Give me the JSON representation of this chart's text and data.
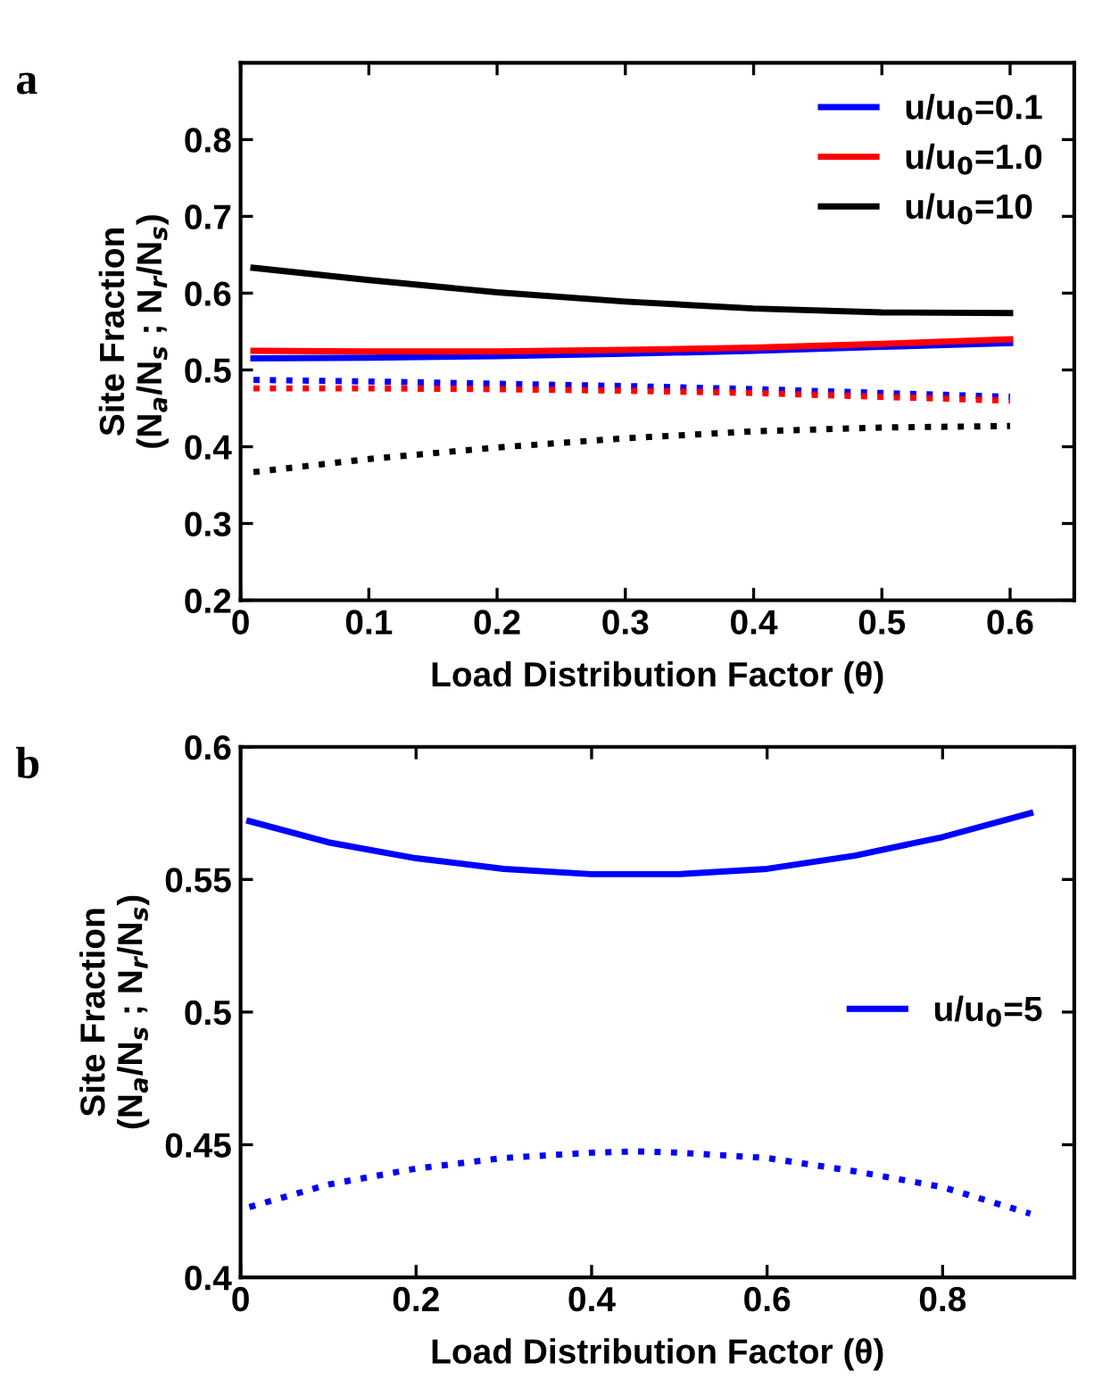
{
  "chart_data": [
    {
      "type": "line",
      "title": "a",
      "xlabel": "Load Distribution Factor (θ)",
      "ylabel": "Site Fraction\n(N$_{a}$/N$_{s}$ ; N$_{r}$/N$_{s}$)",
      "x": [
        0.01,
        0.1,
        0.2,
        0.3,
        0.4,
        0.5,
        0.6
      ],
      "xlim": [
        0,
        0.65
      ],
      "ylim": [
        0.2,
        0.9
      ],
      "xticks": [
        0,
        0.1,
        0.2,
        0.3,
        0.4,
        0.5,
        0.6
      ],
      "yticks": [
        0.2,
        0.3,
        0.4,
        0.5,
        0.6,
        0.7,
        0.8
      ],
      "legend": "top right",
      "grid": false,
      "series": [
        {
          "name": "u/u$_{0}$=0.1",
          "color": "#0000ff",
          "line_style": "solid",
          "values": [
            0.515,
            0.516,
            0.518,
            0.521,
            0.525,
            0.53,
            0.535
          ]
        },
        {
          "name": "u/u$_{0}$=1.0",
          "color": "#ff0000",
          "line_style": "solid",
          "values": [
            0.525,
            0.524,
            0.524,
            0.526,
            0.529,
            0.534,
            0.54
          ]
        },
        {
          "name": "u/u$_{0}$=10",
          "color": "#000000",
          "line_style": "solid",
          "values": [
            0.633,
            0.617,
            0.601,
            0.589,
            0.58,
            0.575,
            0.574
          ]
        },
        {
          "color": "#0000ff",
          "line_style": "dotted",
          "values": [
            0.487,
            0.485,
            0.482,
            0.479,
            0.475,
            0.47,
            0.465
          ]
        },
        {
          "color": "#ff0000",
          "line_style": "dotted",
          "values": [
            0.476,
            0.476,
            0.475,
            0.473,
            0.47,
            0.465,
            0.46
          ]
        },
        {
          "color": "#000000",
          "line_style": "dotted",
          "values": [
            0.367,
            0.384,
            0.399,
            0.411,
            0.42,
            0.425,
            0.427
          ]
        }
      ]
    },
    {
      "type": "line",
      "title": "b",
      "xlabel": "Load Distribution Factor (θ)",
      "ylabel": "Site Fraction\n(N$_{a}$/N$_{s}$ ; N$_{r}$/N$_{s}$)",
      "x": [
        0.01,
        0.1,
        0.2,
        0.3,
        0.4,
        0.45,
        0.5,
        0.6,
        0.7,
        0.8,
        0.9
      ],
      "xlim": [
        0,
        0.95
      ],
      "ylim": [
        0.4,
        0.6
      ],
      "xticks": [
        0,
        0.2,
        0.4,
        0.6,
        0.8
      ],
      "yticks": [
        0.4,
        0.45,
        0.5,
        0.55,
        0.6
      ],
      "legend": "right",
      "grid": false,
      "series": [
        {
          "name": "u/u$_{0}$=5",
          "color": "#0000ff",
          "line_style": "solid",
          "values": [
            0.572,
            0.564,
            0.558,
            0.554,
            0.552,
            0.552,
            0.552,
            0.554,
            0.559,
            0.566,
            0.575
          ]
        },
        {
          "color": "#0000ff",
          "line_style": "dotted",
          "values": [
            0.4265,
            0.435,
            0.441,
            0.445,
            0.447,
            0.4475,
            0.447,
            0.445,
            0.44,
            0.434,
            0.424
          ]
        }
      ]
    }
  ]
}
